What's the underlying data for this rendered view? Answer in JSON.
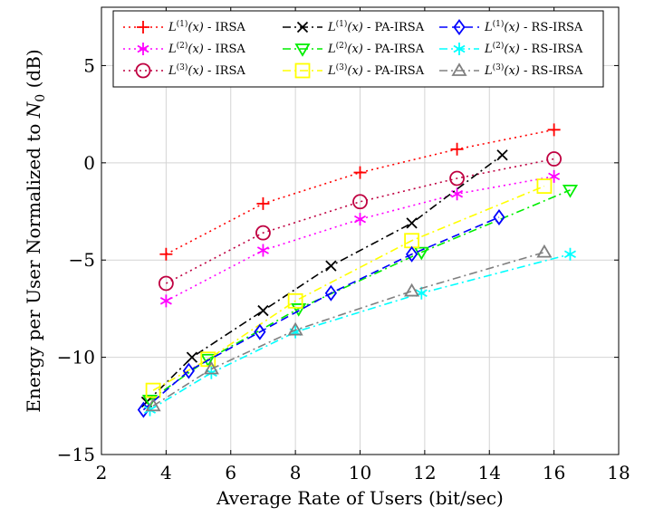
{
  "chart_data": {
    "type": "line",
    "title": "",
    "xlabel": "Average Rate of Users (bit/sec)",
    "ylabel": "Energy per User Normalized to N0 (dB)",
    "xlim": [
      2,
      18
    ],
    "ylim": [
      -15,
      8
    ],
    "xticks": [
      2,
      4,
      6,
      8,
      10,
      12,
      14,
      16,
      18
    ],
    "yticks": [
      -15,
      -10,
      -5,
      0,
      5
    ],
    "xtick_labels": [
      "2",
      "4",
      "6",
      "8",
      "10",
      "12",
      "14",
      "16",
      "18"
    ],
    "ytick_labels": [
      "−15",
      "−10",
      "−5",
      "0",
      "5"
    ],
    "grid": true,
    "legend_position": "top",
    "series": [
      {
        "name": "L(1)(x) - IRSA",
        "color": "#ff0000",
        "marker": "plus",
        "dash": "2 4",
        "x": [
          4,
          7,
          10,
          13,
          16
        ],
        "y": [
          -4.7,
          -2.1,
          -0.5,
          0.7,
          1.7
        ]
      },
      {
        "name": "L(2)(x) - IRSA",
        "color": "#ff00ff",
        "marker": "asterisk",
        "dash": "2 4",
        "x": [
          4,
          7,
          10,
          13,
          16
        ],
        "y": [
          -7.1,
          -4.5,
          -2.9,
          -1.6,
          -0.7
        ]
      },
      {
        "name": "L(3)(x) - IRSA",
        "color": "#bf0040",
        "marker": "circle",
        "dash": "2 4",
        "x": [
          4,
          7,
          10,
          13,
          16
        ],
        "y": [
          -6.2,
          -3.6,
          -2.0,
          -0.8,
          0.2
        ]
      },
      {
        "name": "L(1)(x) - PA-IRSA",
        "color": "#000000",
        "marker": "x",
        "dash": "9 4 2 4",
        "x": [
          3.4,
          4.8,
          7.0,
          9.1,
          11.6,
          14.4
        ],
        "y": [
          -12.3,
          -10.0,
          -7.6,
          -5.3,
          -3.1,
          0.4
        ]
      },
      {
        "name": "L(2)(x) - PA-IRSA",
        "color": "#00ee00",
        "marker": "triangle-down",
        "dash": "9 4 2 4",
        "x": [
          3.5,
          5.3,
          8.1,
          11.9,
          16.5
        ],
        "y": [
          -12.2,
          -10.1,
          -7.5,
          -4.6,
          -1.4
        ]
      },
      {
        "name": "L(3)(x) - PA-IRSA",
        "color": "#ffff00",
        "marker": "square",
        "dash": "9 4 2 4",
        "x": [
          3.6,
          5.3,
          8.0,
          11.6,
          15.7
        ],
        "y": [
          -11.7,
          -10.1,
          -7.1,
          -4.0,
          -1.2
        ]
      },
      {
        "name": "L(1)(x) - RS-IRSA",
        "color": "#0000ff",
        "marker": "diamond",
        "dash": "9 5",
        "x": [
          3.3,
          4.7,
          6.9,
          9.1,
          11.6,
          14.3
        ],
        "y": [
          -12.7,
          -10.7,
          -8.7,
          -6.7,
          -4.7,
          -2.8
        ]
      },
      {
        "name": "L(2)(x) - RS-IRSA",
        "color": "#00ffff",
        "marker": "asterisk",
        "dash": "9 4 2 4",
        "x": [
          3.5,
          5.4,
          8.0,
          11.9,
          16.5
        ],
        "y": [
          -12.7,
          -10.8,
          -8.7,
          -6.7,
          -4.7
        ]
      },
      {
        "name": "L(3)(x) - RS-IRSA",
        "color": "#808080",
        "marker": "triangle-up",
        "dash": "9 4 2 4",
        "x": [
          3.6,
          5.4,
          8.0,
          11.6,
          15.7
        ],
        "y": [
          -12.5,
          -10.6,
          -8.6,
          -6.6,
          -4.6
        ]
      }
    ],
    "legend": [
      {
        "base": "L",
        "sup": "(1)",
        "arg": "(x)",
        "suffix": " - IRSA"
      },
      {
        "base": "L",
        "sup": "(1)",
        "arg": "(x)",
        "suffix": " - PA-IRSA"
      },
      {
        "base": "L",
        "sup": "(1)",
        "arg": "(x)",
        "suffix": " - RS-IRSA"
      },
      {
        "base": "L",
        "sup": "(2)",
        "arg": "(x)",
        "suffix": " - IRSA"
      },
      {
        "base": "L",
        "sup": "(2)",
        "arg": "(x)",
        "suffix": " - PA-IRSA"
      },
      {
        "base": "L",
        "sup": "(2)",
        "arg": "(x)",
        "suffix": " - RS-IRSA"
      },
      {
        "base": "L",
        "sup": "(3)",
        "arg": "(x)",
        "suffix": " - IRSA"
      },
      {
        "base": "L",
        "sup": "(3)",
        "arg": "(x)",
        "suffix": " - PA-IRSA"
      },
      {
        "base": "L",
        "sup": "(3)",
        "arg": "(x)",
        "suffix": " - RS-IRSA"
      }
    ],
    "legend_series_index": [
      0,
      3,
      6,
      1,
      4,
      7,
      2,
      5,
      8
    ]
  }
}
